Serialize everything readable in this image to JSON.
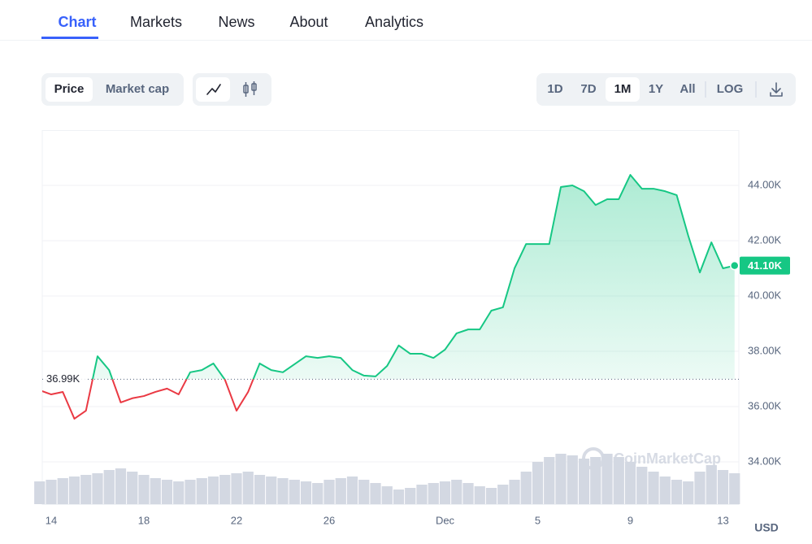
{
  "nav": {
    "tabs": [
      "Chart",
      "Markets",
      "News",
      "About",
      "Analytics"
    ]
  },
  "toolbar": {
    "metric": [
      "Price",
      "Market cap"
    ],
    "ranges": [
      "1D",
      "7D",
      "1M",
      "1Y",
      "All"
    ],
    "scale": "LOG"
  },
  "chart_data": {
    "type": "line",
    "categories": [
      null,
      "14",
      null,
      null,
      null,
      null,
      null,
      null,
      null,
      "18",
      null,
      null,
      null,
      null,
      null,
      null,
      null,
      "22",
      null,
      null,
      null,
      null,
      null,
      null,
      null,
      "26",
      null,
      null,
      null,
      null,
      null,
      null,
      null,
      null,
      null,
      "Dec",
      null,
      null,
      null,
      null,
      null,
      null,
      null,
      "5",
      null,
      null,
      null,
      null,
      null,
      null,
      null,
      "9",
      null,
      null,
      null,
      null,
      null,
      null,
      null,
      "13",
      null
    ],
    "values": [
      36590,
      36440,
      36530,
      35560,
      35850,
      37820,
      37320,
      36150,
      36300,
      36380,
      36530,
      36650,
      36440,
      37240,
      37320,
      37560,
      36970,
      35850,
      36530,
      37560,
      37320,
      37240,
      37530,
      37820,
      37760,
      37820,
      37760,
      37320,
      37120,
      37090,
      37470,
      38210,
      37910,
      37910,
      37760,
      38060,
      38650,
      38790,
      38790,
      39470,
      39590,
      41000,
      41880,
      41880,
      41880,
      43940,
      44000,
      43790,
      43290,
      43500,
      43500,
      44380,
      43880,
      43880,
      43790,
      43650,
      42180,
      40850,
      41940,
      41000,
      41100
    ],
    "value_labels": [
      null,
      null,
      null,
      null,
      null,
      null,
      null,
      null,
      null,
      null,
      null,
      null,
      null,
      null,
      null,
      null,
      null,
      null,
      null,
      null,
      null,
      null,
      null,
      null,
      null,
      null,
      null,
      null,
      null,
      null,
      null,
      null,
      null,
      null,
      null,
      null,
      null,
      null,
      null,
      null,
      null,
      null,
      null,
      null,
      null,
      null,
      null,
      null,
      null,
      null,
      null,
      null,
      null,
      null,
      null,
      null,
      null,
      null,
      null,
      null,
      "41.10K"
    ],
    "volume": [
      28,
      30,
      32,
      34,
      36,
      38,
      42,
      44,
      40,
      36,
      32,
      30,
      28,
      30,
      32,
      34,
      36,
      38,
      40,
      36,
      34,
      32,
      30,
      28,
      26,
      30,
      32,
      34,
      30,
      26,
      22,
      18,
      20,
      24,
      26,
      28,
      30,
      26,
      22,
      20,
      24,
      30,
      40,
      52,
      58,
      62,
      60,
      56,
      58,
      62,
      58,
      52,
      46,
      40,
      34,
      30,
      28,
      40,
      48,
      42,
      38
    ],
    "volume_color": "#d3d8e2",
    "color_above": "#16c784",
    "color_below": "#ea3943",
    "baseline": {
      "value": 36990,
      "label": "36.99K"
    },
    "ylim": [
      32470,
      46000
    ],
    "yticks": [
      {
        "value": 34000,
        "label": "34.00K"
      },
      {
        "value": 36000,
        "label": "36.00K"
      },
      {
        "value": 38000,
        "label": "38.00K"
      },
      {
        "value": 40000,
        "label": "40.00K"
      },
      {
        "value": 42000,
        "label": "42.00K"
      },
      {
        "value": 44000,
        "label": "44.00K"
      }
    ],
    "grid": true,
    "watermark": "CoinMarketCap",
    "currency": "USD"
  }
}
